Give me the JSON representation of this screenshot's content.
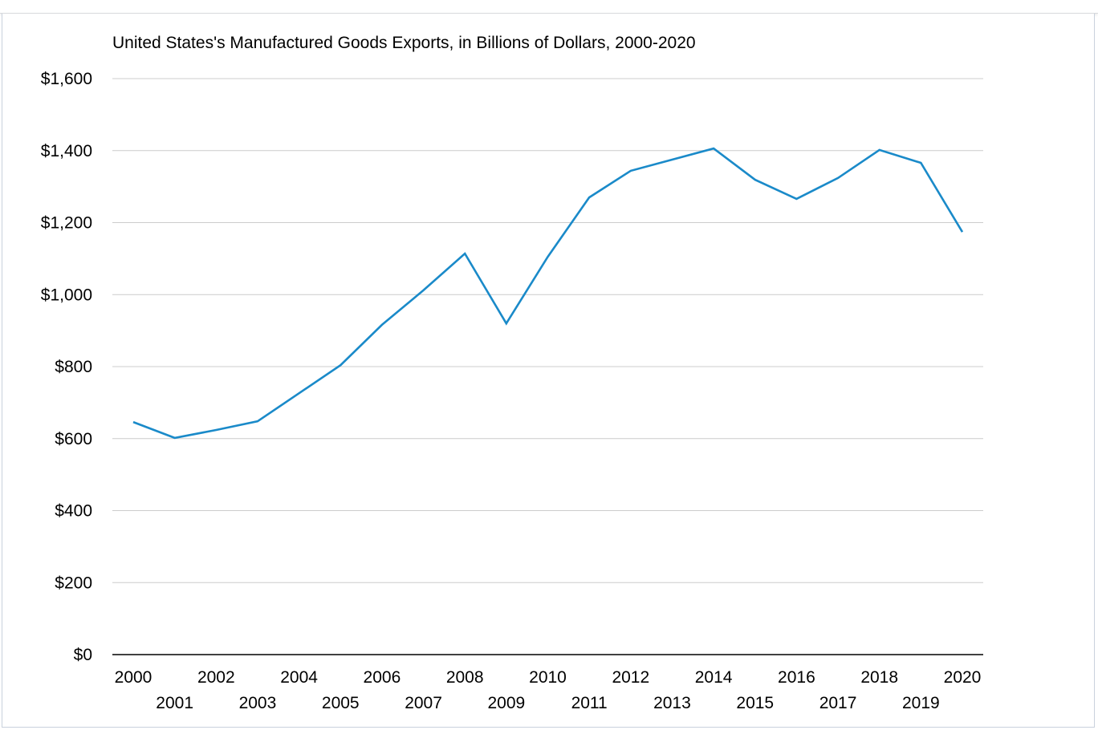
{
  "chart_data": {
    "type": "line",
    "title": "United States's Manufactured Goods Exports, in Billions of Dollars, 2000-2020",
    "xlabel": "",
    "ylabel": "",
    "categories": [
      "2000",
      "2001",
      "2002",
      "2003",
      "2004",
      "2005",
      "2006",
      "2007",
      "2008",
      "2009",
      "2010",
      "2011",
      "2012",
      "2013",
      "2014",
      "2015",
      "2016",
      "2017",
      "2018",
      "2019",
      "2020"
    ],
    "series": [
      {
        "name": "Manufactured Goods Exports",
        "color": "#1a8ac9",
        "values": [
          646,
          602,
          624,
          648,
          726,
          804,
          916,
          1012,
          1114,
          920,
          1105,
          1270,
          1344,
          1375,
          1406,
          1319,
          1266,
          1324,
          1402,
          1366,
          1174
        ]
      }
    ],
    "ylim": [
      0,
      1600
    ],
    "yticks": [
      0,
      200,
      400,
      600,
      800,
      1000,
      1200,
      1400,
      1600
    ],
    "ytick_labels": [
      "$0",
      "$200",
      "$400",
      "$600",
      "$800",
      "$1,000",
      "$1,200",
      "$1,400",
      "$1,600"
    ],
    "grid": true,
    "legend": "none"
  },
  "colors": {
    "line": "#1a8ac9",
    "grid": "#cccccc",
    "axis": "#000000"
  }
}
